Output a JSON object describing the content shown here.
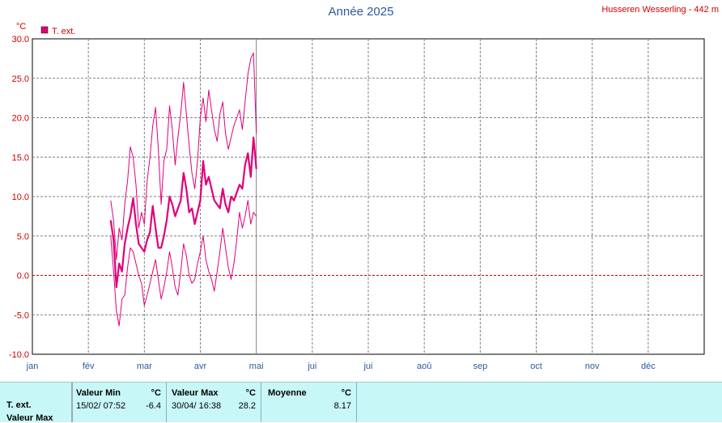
{
  "header": {
    "title": "Année 2025",
    "station": "Husseren Wesserling - 442 m"
  },
  "chart_data": {
    "type": "line",
    "title": "Année 2025",
    "unit_label": "°C",
    "legend": {
      "label": "T. ext.",
      "color": "#e0007a",
      "placement": "top-left"
    },
    "ylim": [
      -10,
      30
    ],
    "yticks": [
      "-10.0",
      "-5.0",
      "0.0",
      "5.0",
      "10.0",
      "15.0",
      "20.0",
      "25.0",
      "30.0"
    ],
    "xlim": [
      0,
      12
    ],
    "xticks": [
      "jan",
      "fév",
      "mar",
      "avr",
      "mai",
      "jui",
      "jui",
      "aoû",
      "sep",
      "oct",
      "nov",
      "déc"
    ],
    "grid": true,
    "zero_line_color": "#d40000",
    "marker_line_month": 4,
    "series": [
      {
        "name": "T. ext.",
        "role": "mean",
        "color": "#e0007a",
        "x": [
          1.4,
          1.45,
          1.5,
          1.55,
          1.6,
          1.65,
          1.7,
          1.75,
          1.8,
          1.85,
          1.9,
          1.95,
          2.0,
          2.05,
          2.1,
          2.15,
          2.2,
          2.25,
          2.3,
          2.35,
          2.4,
          2.45,
          2.5,
          2.55,
          2.6,
          2.65,
          2.7,
          2.75,
          2.8,
          2.85,
          2.9,
          2.95,
          3.0,
          3.05,
          3.1,
          3.15,
          3.2,
          3.25,
          3.3,
          3.35,
          3.4,
          3.45,
          3.5,
          3.55,
          3.6,
          3.65,
          3.7,
          3.75,
          3.8,
          3.85,
          3.9,
          3.95,
          4.0
        ],
        "y": [
          7.0,
          4.5,
          -1.5,
          1.5,
          0.5,
          4.0,
          6.0,
          7.5,
          9.8,
          6.5,
          4.0,
          3.5,
          3.0,
          4.5,
          5.5,
          8.8,
          6.0,
          3.5,
          3.5,
          5.0,
          7.0,
          10.0,
          9.0,
          7.5,
          8.5,
          9.5,
          13.0,
          11.0,
          8.0,
          8.5,
          6.5,
          8.0,
          9.5,
          14.5,
          11.5,
          12.5,
          11.0,
          9.5,
          9.0,
          8.5,
          11.0,
          9.0,
          8.0,
          10.0,
          9.5,
          10.5,
          11.5,
          11.0,
          14.0,
          15.5,
          12.5,
          17.5,
          13.5
        ]
      },
      {
        "name": "",
        "role": "max",
        "color": "#e0007a",
        "x": [
          1.4,
          1.45,
          1.5,
          1.55,
          1.6,
          1.65,
          1.7,
          1.75,
          1.8,
          1.85,
          1.9,
          1.95,
          2.0,
          2.05,
          2.1,
          2.15,
          2.2,
          2.25,
          2.3,
          2.35,
          2.4,
          2.45,
          2.5,
          2.55,
          2.6,
          2.65,
          2.7,
          2.75,
          2.8,
          2.85,
          2.9,
          2.95,
          3.0,
          3.05,
          3.1,
          3.15,
          3.2,
          3.25,
          3.3,
          3.35,
          3.4,
          3.45,
          3.5,
          3.55,
          3.6,
          3.65,
          3.7,
          3.75,
          3.8,
          3.85,
          3.9,
          3.95,
          4.0
        ],
        "y": [
          9.5,
          7.0,
          2.0,
          6.0,
          4.5,
          9.0,
          12.0,
          16.3,
          15.0,
          11.5,
          6.0,
          8.0,
          6.5,
          12.0,
          15.0,
          19.0,
          21.3,
          16.0,
          9.0,
          14.5,
          16.0,
          21.5,
          18.5,
          14.0,
          17.5,
          20.5,
          24.5,
          20.5,
          16.5,
          13.0,
          11.0,
          14.5,
          20.0,
          22.5,
          19.5,
          23.5,
          21.0,
          18.5,
          17.0,
          20.5,
          22.0,
          18.0,
          16.0,
          17.5,
          19.0,
          20.0,
          21.0,
          18.5,
          22.0,
          25.5,
          27.5,
          28.2,
          18.0
        ]
      },
      {
        "name": "",
        "role": "min",
        "color": "#e0007a",
        "x": [
          1.4,
          1.45,
          1.5,
          1.55,
          1.6,
          1.65,
          1.7,
          1.75,
          1.8,
          1.85,
          1.9,
          1.95,
          2.0,
          2.05,
          2.1,
          2.15,
          2.2,
          2.25,
          2.3,
          2.35,
          2.4,
          2.45,
          2.5,
          2.55,
          2.6,
          2.65,
          2.7,
          2.75,
          2.8,
          2.85,
          2.9,
          2.95,
          3.0,
          3.05,
          3.1,
          3.15,
          3.2,
          3.25,
          3.3,
          3.35,
          3.4,
          3.45,
          3.5,
          3.55,
          3.6,
          3.65,
          3.7,
          3.75,
          3.8,
          3.85,
          3.9,
          3.95,
          4.0
        ],
        "y": [
          5.0,
          0.5,
          -4.5,
          -6.4,
          -3.0,
          -2.5,
          1.0,
          3.5,
          3.0,
          1.5,
          0.0,
          -1.0,
          -3.8,
          -2.5,
          -1.0,
          0.5,
          2.0,
          -0.5,
          -3.0,
          -1.5,
          0.5,
          3.0,
          1.0,
          -1.5,
          -2.5,
          0.5,
          4.0,
          2.5,
          0.0,
          -1.0,
          -0.5,
          1.5,
          3.0,
          5.0,
          2.0,
          0.5,
          -0.5,
          -2.0,
          0.5,
          3.0,
          6.0,
          3.5,
          1.0,
          -0.5,
          1.5,
          4.5,
          8.0,
          6.0,
          7.5,
          9.5,
          6.5,
          8.0,
          7.5
        ]
      }
    ]
  },
  "stats": {
    "row_label_1": "T. ext.",
    "row_label_2": "Valeur Max",
    "min": {
      "header": "Valeur Min",
      "unit": "°C",
      "datetime": "15/02/  07:52",
      "value": "-6.4"
    },
    "max": {
      "header": "Valeur Max",
      "unit": "°C",
      "datetime": "30/04/  16:38",
      "value": "28.2"
    },
    "mean": {
      "header": "Moyenne",
      "unit": "°C",
      "value": "8.17"
    }
  }
}
